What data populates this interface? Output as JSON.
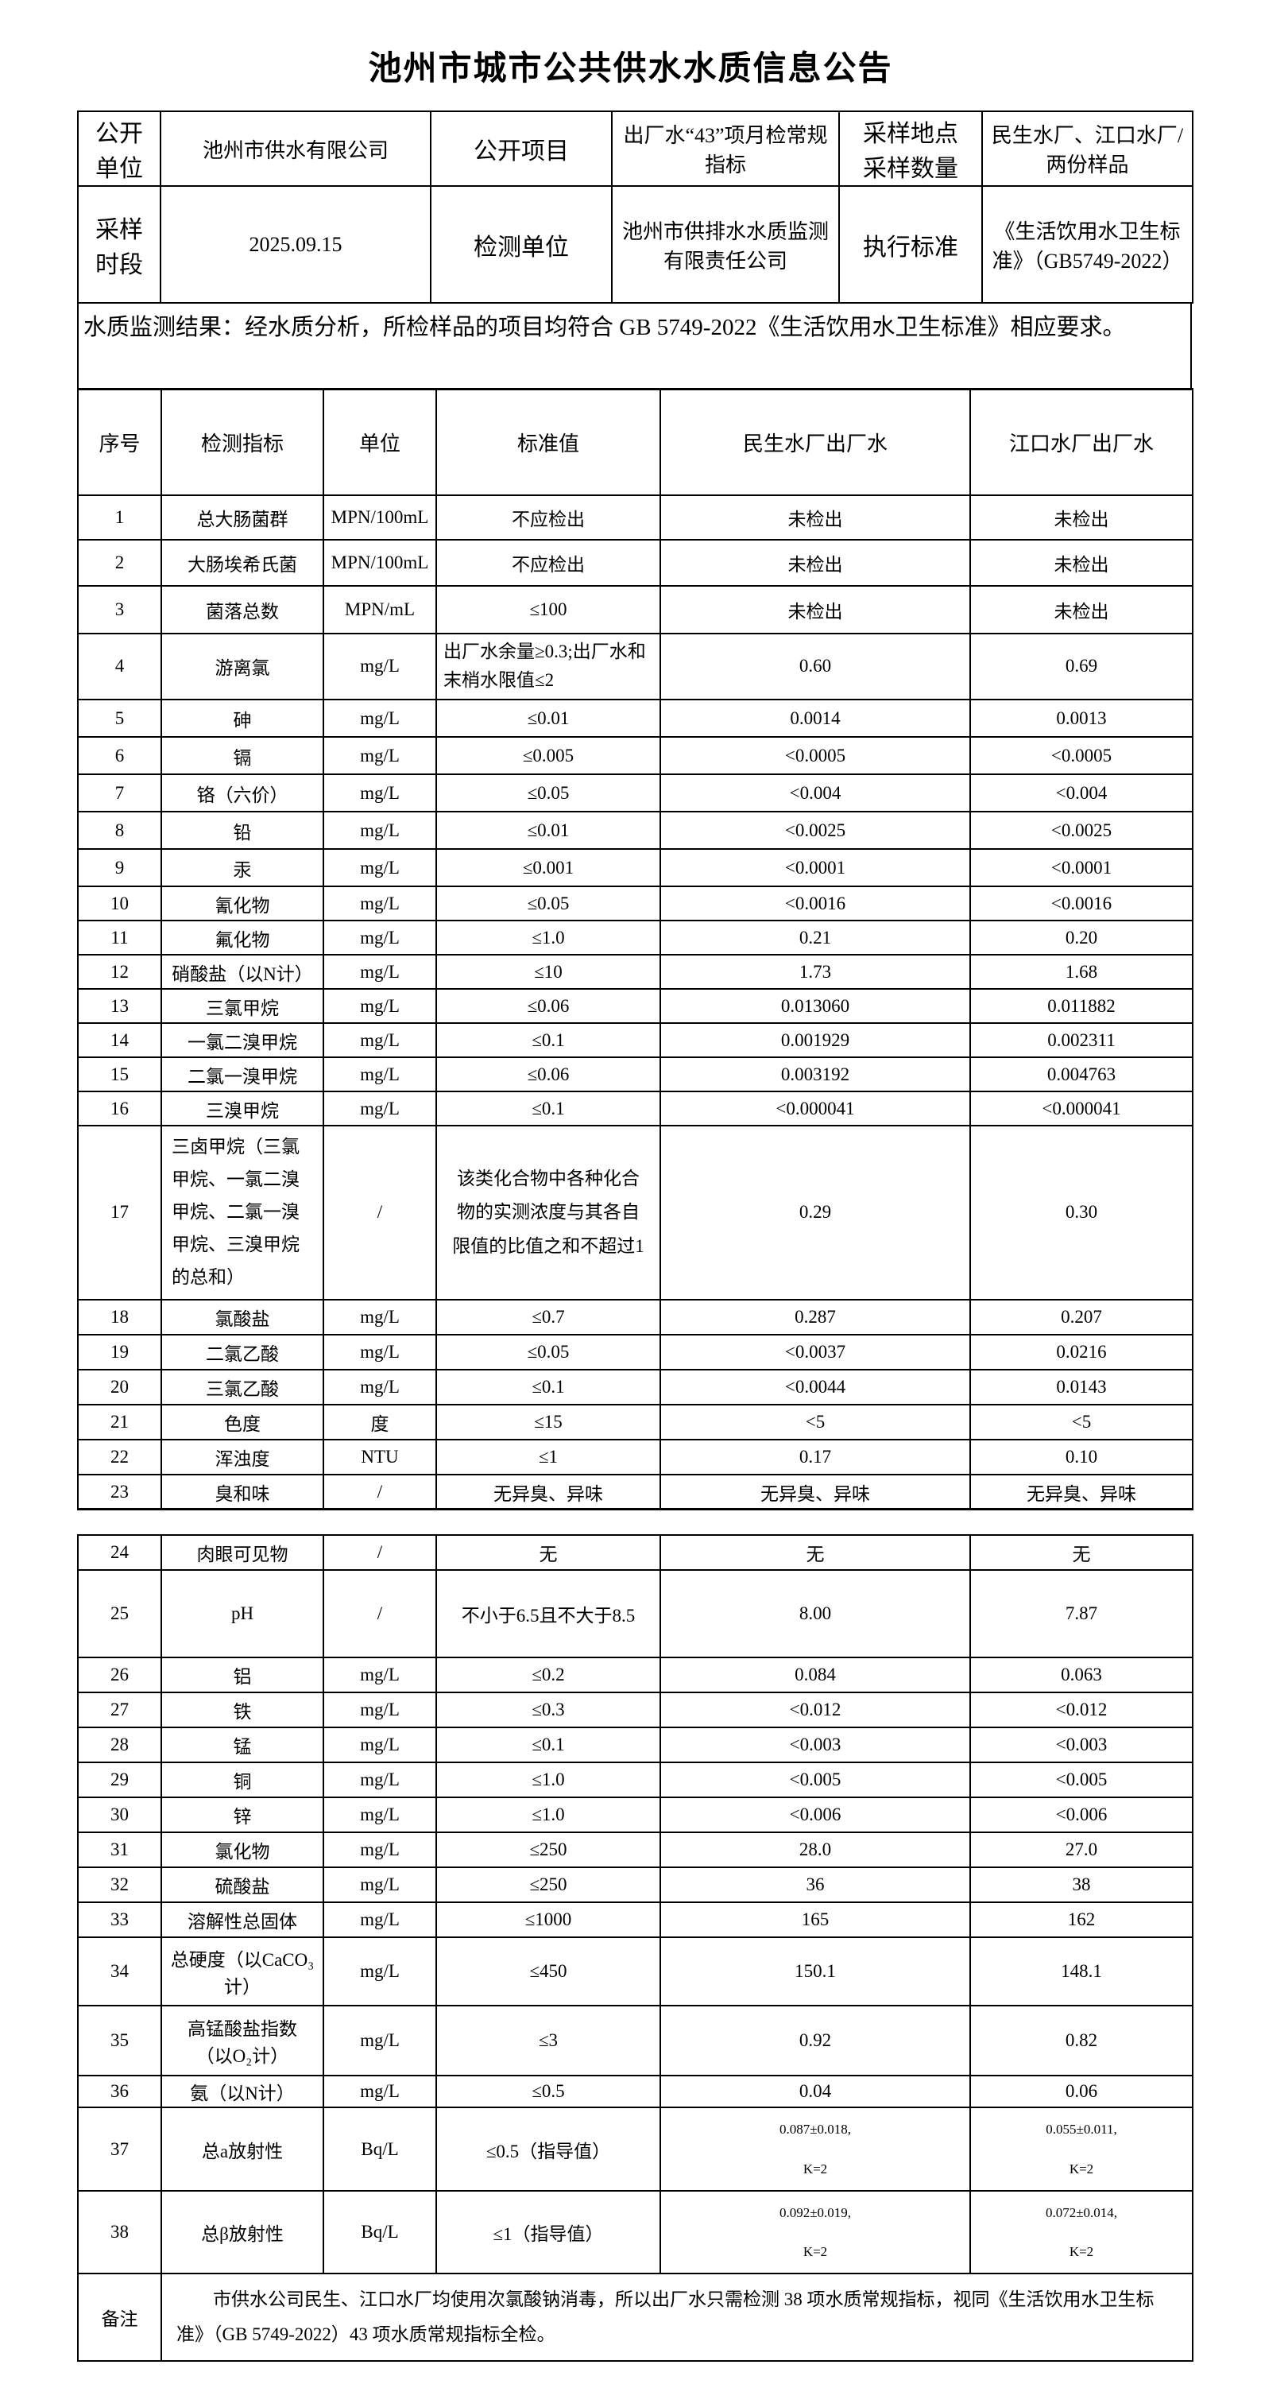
{
  "title": "池州市城市公共供水水质信息公告",
  "info": {
    "row1": {
      "label1": "公开\n单位",
      "value1": "池州市供水有限公司",
      "label2": "公开项目",
      "value2": "出厂水“43”项月检常规指标",
      "label3": "采样地点\n采样数量",
      "value3": "民生水厂、江口水厂/两份样品"
    },
    "row2": {
      "label1": "采样\n时段",
      "value1": "2025.09.15",
      "label2": "检测单位",
      "value2": "池州市供排水水质监测有限责任公司",
      "label3": "执行标准",
      "value3": "《生活饮用水卫生标准》（GB5749-2022）"
    }
  },
  "result_note": "水质监测结果：经水质分析，所检样品的项目均符合 GB 5749-2022《生活饮用水卫生标准》相应要求。",
  "table": {
    "headers": [
      "序号",
      "检测指标",
      "单位",
      "标准值",
      "民生水厂出厂水",
      "江口水厂出厂水"
    ],
    "section1": [
      {
        "no": "1",
        "name": "总大肠菌群",
        "unit": "MPN/100mL",
        "std": "不应检出",
        "v1": "未检出",
        "v2": "未检出"
      },
      {
        "no": "2",
        "name": "大肠埃希氏菌",
        "unit": "MPN/100mL",
        "std": "不应检出",
        "v1": "未检出",
        "v2": "未检出"
      },
      {
        "no": "3",
        "name": "菌落总数",
        "unit": "MPN/mL",
        "std": "≤100",
        "v1": "未检出",
        "v2": "未检出"
      },
      {
        "no": "4",
        "name": "游离氯",
        "unit": "mg/L",
        "std": "出厂水余量≥0.3;出厂水和末梢水限值≤2",
        "v1": "0.60",
        "v2": "0.69"
      },
      {
        "no": "5",
        "name": "砷",
        "unit": "mg/L",
        "std": "≤0.01",
        "v1": "0.0014",
        "v2": "0.0013"
      },
      {
        "no": "6",
        "name": "镉",
        "unit": "mg/L",
        "std": "≤0.005",
        "v1": "<0.0005",
        "v2": "<0.0005"
      },
      {
        "no": "7",
        "name": "铬（六价）",
        "unit": "mg/L",
        "std": "≤0.05",
        "v1": "<0.004",
        "v2": "<0.004"
      },
      {
        "no": "8",
        "name": "铅",
        "unit": "mg/L",
        "std": "≤0.01",
        "v1": "<0.0025",
        "v2": "<0.0025"
      },
      {
        "no": "9",
        "name": "汞",
        "unit": "mg/L",
        "std": "≤0.001",
        "v1": "<0.0001",
        "v2": "<0.0001"
      },
      {
        "no": "10",
        "name": "氰化物",
        "unit": "mg/L",
        "std": "≤0.05",
        "v1": "<0.0016",
        "v2": "<0.0016"
      },
      {
        "no": "11",
        "name": "氟化物",
        "unit": "mg/L",
        "std": "≤1.0",
        "v1": "0.21",
        "v2": "0.20"
      },
      {
        "no": "12",
        "name": "硝酸盐（以N计）",
        "unit": "mg/L",
        "std": "≤10",
        "v1": "1.73",
        "v2": "1.68"
      },
      {
        "no": "13",
        "name": "三氯甲烷",
        "unit": "mg/L",
        "std": "≤0.06",
        "v1": "0.013060",
        "v2": "0.011882"
      },
      {
        "no": "14",
        "name": "一氯二溴甲烷",
        "unit": "mg/L",
        "std": "≤0.1",
        "v1": "0.001929",
        "v2": "0.002311"
      },
      {
        "no": "15",
        "name": "二氯一溴甲烷",
        "unit": "mg/L",
        "std": "≤0.06",
        "v1": "0.003192",
        "v2": "0.004763"
      },
      {
        "no": "16",
        "name": "三溴甲烷",
        "unit": "mg/L",
        "std": "≤0.1",
        "v1": "<0.000041",
        "v2": "<0.000041"
      },
      {
        "no": "17",
        "name": "三卤甲烷（三氯甲烷、一氯二溴甲烷、二氯一溴甲烷、三溴甲烷的总和）",
        "unit": "/",
        "std": "该类化合物中各种化合物的实测浓度与其各自限值的比值之和不超过1",
        "v1": "0.29",
        "v2": "0.30"
      },
      {
        "no": "18",
        "name": "氯酸盐",
        "unit": "mg/L",
        "std": "≤0.7",
        "v1": "0.287",
        "v2": "0.207"
      },
      {
        "no": "19",
        "name": "二氯乙酸",
        "unit": "mg/L",
        "std": "≤0.05",
        "v1": "<0.0037",
        "v2": "0.0216"
      },
      {
        "no": "20",
        "name": "三氯乙酸",
        "unit": "mg/L",
        "std": "≤0.1",
        "v1": "<0.0044",
        "v2": "0.0143"
      },
      {
        "no": "21",
        "name": "色度",
        "unit": "度",
        "std": "≤15",
        "v1": "<5",
        "v2": "<5"
      },
      {
        "no": "22",
        "name": "浑浊度",
        "unit": "NTU",
        "std": "≤1",
        "v1": "0.17",
        "v2": "0.10"
      },
      {
        "no": "23",
        "name": "臭和味",
        "unit": "/",
        "std": "无异臭、异味",
        "v1": "无异臭、异味",
        "v2": "无异臭、异味"
      }
    ],
    "section2": [
      {
        "no": "24",
        "name": "肉眼可见物",
        "unit": "/",
        "std": "无",
        "v1": "无",
        "v2": "无"
      },
      {
        "no": "25",
        "name": "pH",
        "unit": "/",
        "std": "不小于6.5且不大于8.5",
        "v1": "8.00",
        "v2": "7.87"
      },
      {
        "no": "26",
        "name": "铝",
        "unit": "mg/L",
        "std": "≤0.2",
        "v1": "0.084",
        "v2": "0.063"
      },
      {
        "no": "27",
        "name": "铁",
        "unit": "mg/L",
        "std": "≤0.3",
        "v1": "<0.012",
        "v2": "<0.012"
      },
      {
        "no": "28",
        "name": "锰",
        "unit": "mg/L",
        "std": "≤0.1",
        "v1": "<0.003",
        "v2": "<0.003"
      },
      {
        "no": "29",
        "name": "铜",
        "unit": "mg/L",
        "std": "≤1.0",
        "v1": "<0.005",
        "v2": "<0.005"
      },
      {
        "no": "30",
        "name": "锌",
        "unit": "mg/L",
        "std": "≤1.0",
        "v1": "<0.006",
        "v2": "<0.006"
      },
      {
        "no": "31",
        "name": "氯化物",
        "unit": "mg/L",
        "std": "≤250",
        "v1": "28.0",
        "v2": "27.0"
      },
      {
        "no": "32",
        "name": "硫酸盐",
        "unit": "mg/L",
        "std": "≤250",
        "v1": "36",
        "v2": "38"
      },
      {
        "no": "33",
        "name": "溶解性总固体",
        "unit": "mg/L",
        "std": "≤1000",
        "v1": "165",
        "v2": "162"
      },
      {
        "no": "34",
        "name": "总硬度（以CaCO₃\n计）",
        "unit": "mg/L",
        "std": "≤450",
        "v1": "150.1",
        "v2": "148.1"
      },
      {
        "no": "35",
        "name": "高锰酸盐指数\n（以O₂计）",
        "unit": "mg/L",
        "std": "≤3",
        "v1": "0.92",
        "v2": "0.82"
      },
      {
        "no": "36",
        "name": "氨（以N计）",
        "unit": "mg/L",
        "std": "≤0.5",
        "v1": "0.04",
        "v2": "0.06"
      },
      {
        "no": "37",
        "name": "总a放射性",
        "unit": "Bq/L",
        "std": "≤0.5（指导值）",
        "v1": "0.087±0.018,\nK=2",
        "v2": "0.055±0.011,\nK=2"
      },
      {
        "no": "38",
        "name": "总β放射性",
        "unit": "Bq/L",
        "std": "≤1（指导值）",
        "v1": "0.092±0.019,\nK=2",
        "v2": "0.072±0.014,\nK=2"
      }
    ]
  },
  "remark": {
    "label": "备注",
    "text": "市供水公司民生、江口水厂均使用次氯酸钠消毒，所以出厂水只需检测 38 项水质常规指标，视同《生活饮用水卫生标准》（GB 5749-2022）43 项水质常规指标全检。"
  }
}
